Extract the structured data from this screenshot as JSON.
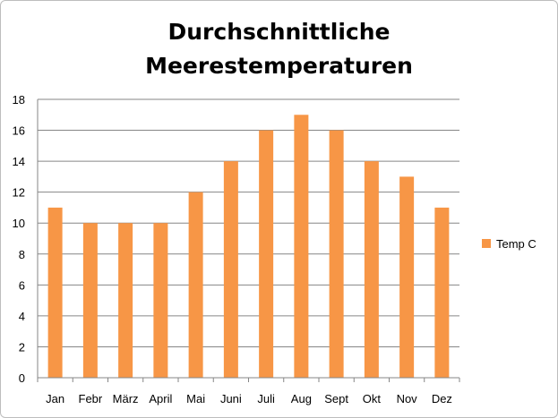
{
  "chart_data": {
    "type": "bar",
    "title_line1": "Durchschnittliche",
    "title_line2": "Meerestemperaturen",
    "xlabel": "",
    "ylabel": "",
    "categories": [
      "Jan",
      "Febr",
      "März",
      "April",
      "Mai",
      "Juni",
      "Juli",
      "Aug",
      "Sept",
      "Okt",
      "Nov",
      "Dez"
    ],
    "series": [
      {
        "name": "Temp C",
        "color": "#f79646",
        "values": [
          11,
          10,
          10,
          10,
          12,
          14,
          16,
          17,
          16,
          14,
          13,
          11
        ]
      }
    ],
    "ylim": [
      0,
      18
    ],
    "yticks": [
      0,
      2,
      4,
      6,
      8,
      10,
      12,
      14,
      16,
      18
    ],
    "grid": true,
    "legend_position": "right"
  }
}
